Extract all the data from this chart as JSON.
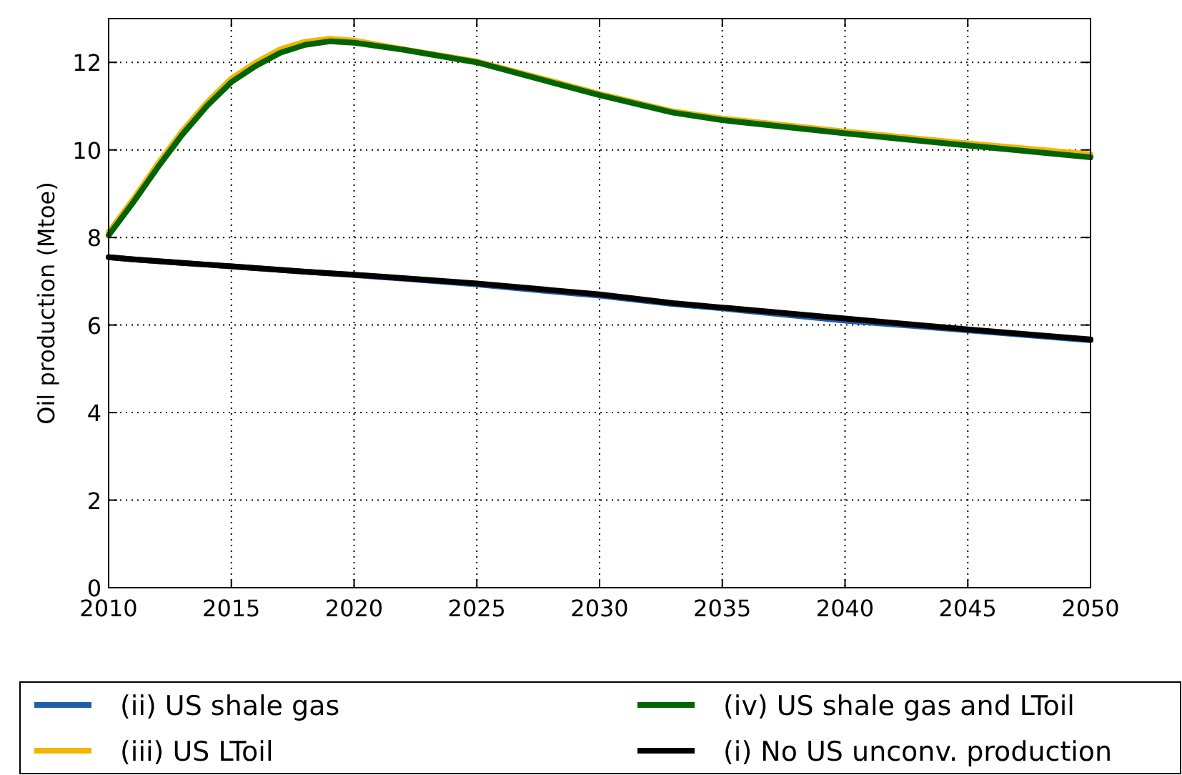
{
  "chart_data": {
    "type": "line",
    "ylabel": "Oil production (Mtoe)",
    "x": [
      2010,
      2011,
      2012,
      2013,
      2014,
      2015,
      2016,
      2017,
      2018,
      2019,
      2020,
      2022,
      2025,
      2028,
      2030,
      2033,
      2035,
      2040,
      2045,
      2050
    ],
    "series": [
      {
        "name": "(ii) US shale gas",
        "color": "#1f5fa8",
        "values": [
          7.55,
          7.5,
          7.46,
          7.42,
          7.38,
          7.34,
          7.3,
          7.26,
          7.22,
          7.18,
          7.14,
          7.06,
          6.93,
          6.77,
          6.67,
          6.48,
          6.38,
          6.1,
          5.88,
          5.65
        ]
      },
      {
        "name": "(iii) US LToil",
        "color": "#f5b400",
        "values": [
          8.12,
          8.87,
          9.68,
          10.43,
          11.08,
          11.63,
          12.0,
          12.3,
          12.47,
          12.54,
          12.5,
          12.3,
          12.02,
          11.58,
          11.28,
          10.88,
          10.72,
          10.42,
          10.15,
          9.9
        ]
      },
      {
        "name": "(iv) US shale gas and LToil",
        "color": "#006400",
        "values": [
          8.05,
          8.8,
          9.6,
          10.35,
          11.0,
          11.55,
          11.92,
          12.22,
          12.4,
          12.48,
          12.45,
          12.29,
          12.0,
          11.55,
          11.25,
          10.85,
          10.68,
          10.38,
          10.1,
          9.83
        ]
      },
      {
        "name": "(i) No US unconv. production",
        "color": "#000000",
        "values": [
          7.55,
          7.5,
          7.46,
          7.42,
          7.38,
          7.34,
          7.3,
          7.26,
          7.22,
          7.18,
          7.15,
          7.07,
          6.95,
          6.8,
          6.7,
          6.5,
          6.4,
          6.15,
          5.9,
          5.67
        ]
      }
    ],
    "xlim": [
      2010,
      2050
    ],
    "xticks": [
      2010,
      2015,
      2020,
      2025,
      2030,
      2035,
      2040,
      2045,
      2050
    ],
    "ylim": [
      0,
      13
    ],
    "yticks": [
      0,
      2,
      4,
      6,
      8,
      10,
      12
    ],
    "grid": true,
    "legend": "bottom",
    "line_style": "solid"
  }
}
